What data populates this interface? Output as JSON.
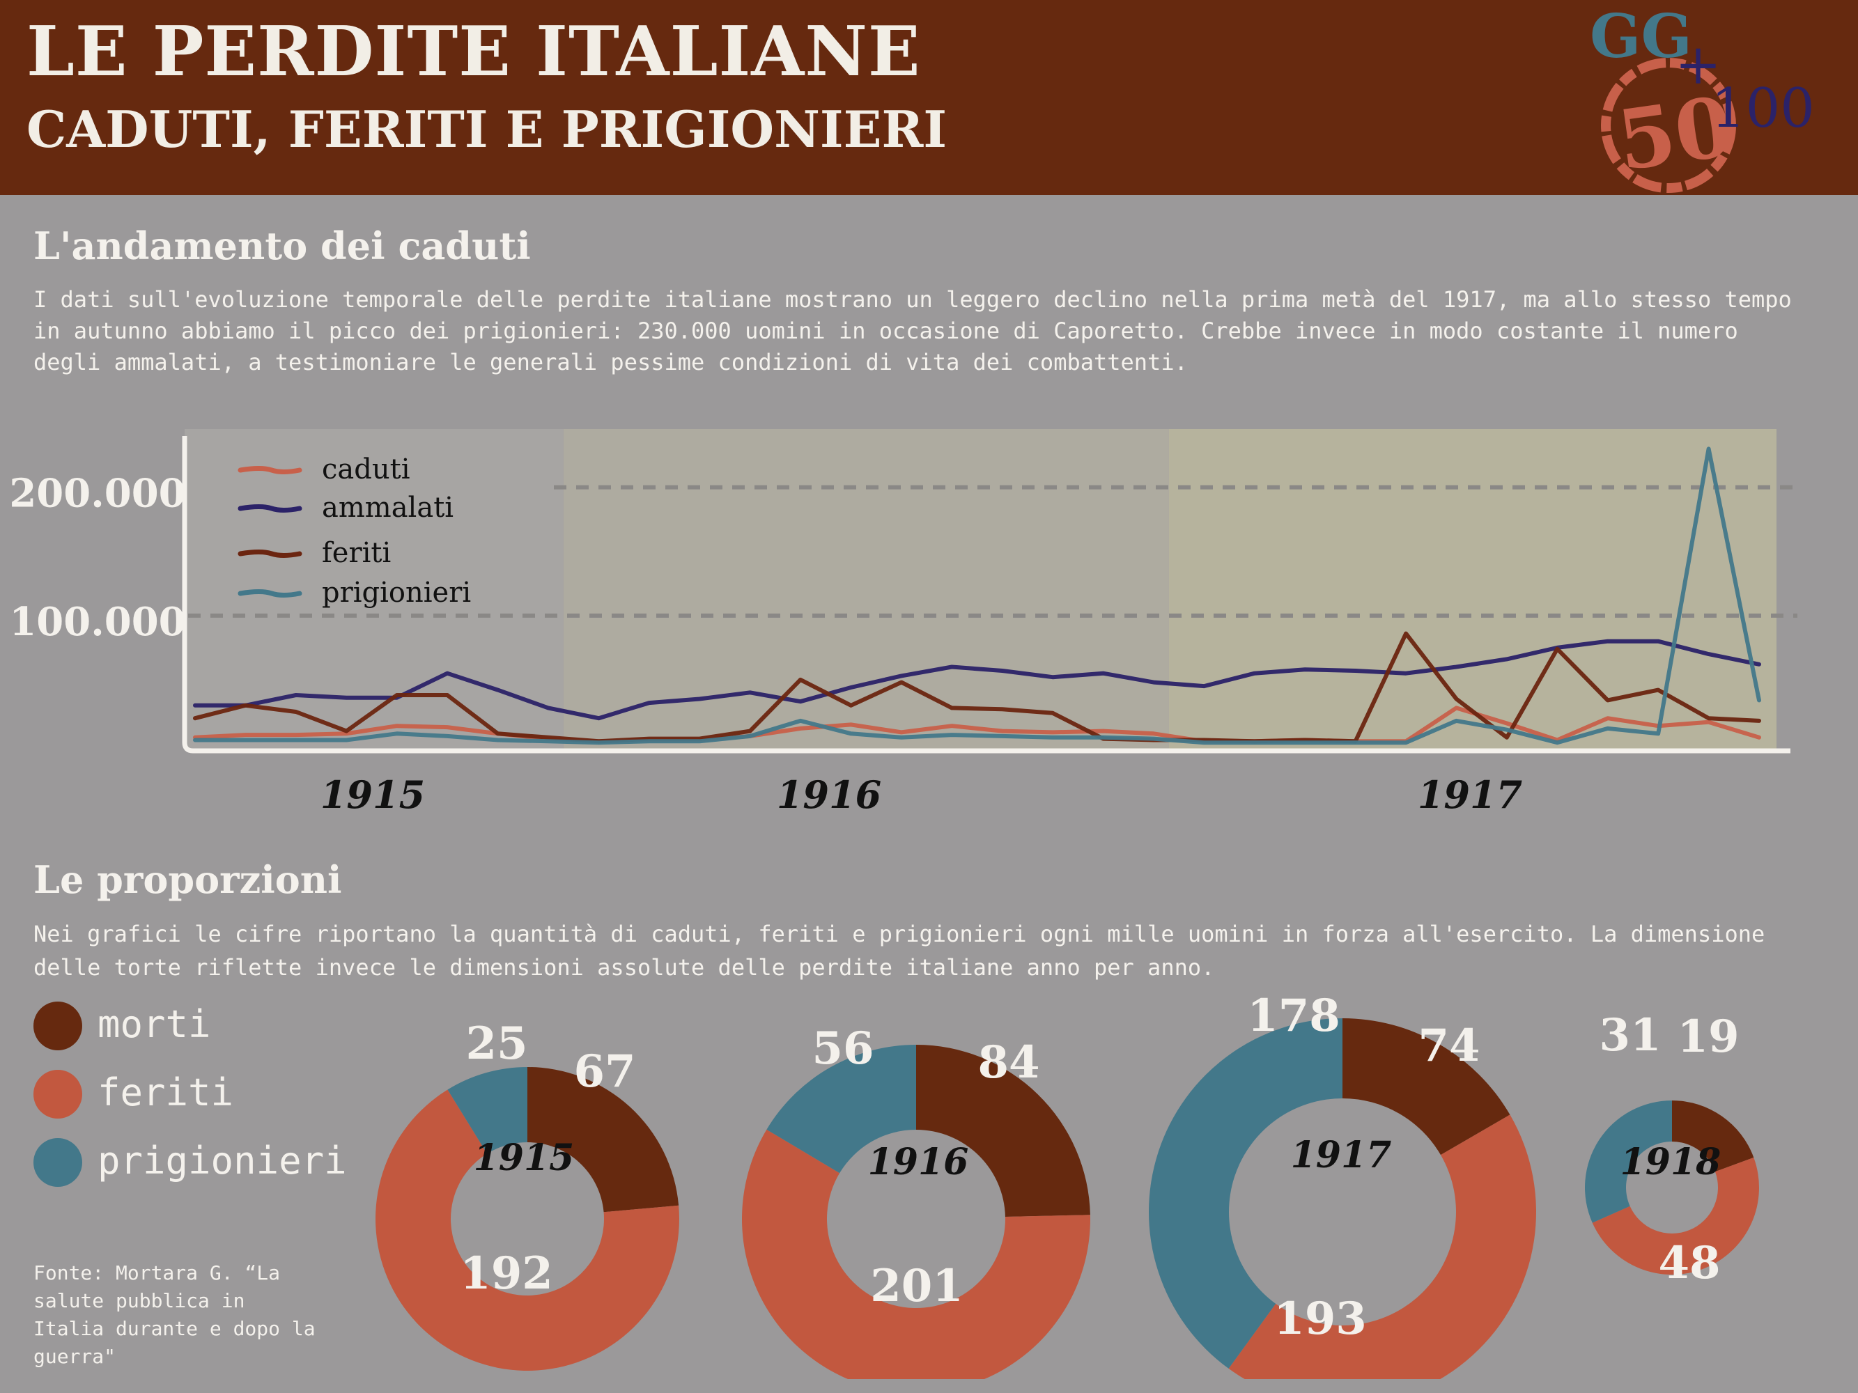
{
  "header": {
    "title": "Le perdite italiane",
    "subtitle": "caduti, feriti e prigionieri",
    "logo": {
      "top": "GG",
      "middle": "50",
      "plus": "+",
      "right": "100"
    }
  },
  "section1": {
    "title": "L'andamento dei caduti",
    "text": "I dati sull'evoluzione temporale delle perdite italiane mostrano un leggero declino nella prima metà del 1917, ma allo stesso tempo in autunno abbiamo il picco dei prigionieri: 230.000 uomini in occasione di Caporetto. Crebbe invece in modo costante il numero degli ammalati, a testimoniare le generali pessime condizioni di vita dei combattenti."
  },
  "section2": {
    "title": "Le proporzioni",
    "text": "Nei grafici le cifre riportano la quantità di caduti, feriti e prigionieri ogni mille uomini in forza all'esercito. La dimensione delle torte riflette invece le dimensioni assolute delle perdite italiane anno per anno.",
    "legend": [
      {
        "label": "morti",
        "color": "#66290f"
      },
      {
        "label": "feriti",
        "color": "#c2583f"
      },
      {
        "label": "prigionieri",
        "color": "#43788a"
      }
    ],
    "source": "Fonte: Mortara G. “La salute pubblica in Italia durante e dopo la guerra\""
  },
  "chart_data": [
    {
      "type": "line",
      "yticks": [
        {
          "value": 100000,
          "label": "100.000"
        },
        {
          "value": 200000,
          "label": "200.000"
        }
      ],
      "ylim": [
        0,
        240000
      ],
      "x": [
        0,
        1,
        2,
        3,
        4,
        5,
        6,
        7,
        8,
        9,
        10,
        11,
        12,
        13,
        14,
        15,
        16,
        17,
        18,
        19,
        20,
        21,
        22,
        23,
        24,
        25,
        26,
        27,
        28,
        29,
        30,
        31
      ],
      "year_bands": [
        {
          "label": "1915",
          "from": 0,
          "to": 7,
          "color": "#a7a5a3"
        },
        {
          "label": "1916",
          "from": 7,
          "to": 19,
          "color": "#aeaba0"
        },
        {
          "label": "1917",
          "from": 19,
          "to": 31,
          "color": "#b6b39d"
        }
      ],
      "series": [
        {
          "name": "caduti",
          "color": "#c8604a",
          "values": [
            5000,
            7000,
            7000,
            8000,
            14000,
            13000,
            8000,
            4000,
            2000,
            3000,
            3000,
            6000,
            12000,
            15000,
            9000,
            14000,
            10000,
            9000,
            10000,
            8000,
            2000,
            2000,
            3000,
            2000,
            2000,
            28000,
            16000,
            3000,
            20000,
            14000,
            17000,
            5000
          ]
        },
        {
          "name": "ammalati",
          "color": "#2b2268",
          "values": [
            30000,
            30000,
            38000,
            36000,
            36000,
            55000,
            42000,
            28000,
            20000,
            32000,
            35000,
            40000,
            33000,
            44000,
            53000,
            60000,
            57000,
            52000,
            55000,
            48000,
            45000,
            55000,
            58000,
            57000,
            55000,
            60000,
            66000,
            75000,
            80000,
            80000,
            70000,
            62000
          ]
        },
        {
          "name": "feriti",
          "color": "#6b2510",
          "values": [
            20000,
            30000,
            25000,
            10000,
            38000,
            38000,
            8000,
            5000,
            2000,
            4000,
            4000,
            10000,
            50000,
            30000,
            48000,
            28000,
            27000,
            24000,
            4000,
            3000,
            3000,
            2000,
            3000,
            2000,
            86000,
            35000,
            5000,
            74000,
            34000,
            42000,
            20000,
            18000
          ]
        },
        {
          "name": "prigionieri",
          "color": "#43788a",
          "values": [
            3000,
            3000,
            3000,
            3000,
            8000,
            6000,
            3000,
            2000,
            1000,
            2000,
            2000,
            6000,
            18000,
            8000,
            5000,
            7000,
            6000,
            5000,
            5000,
            4000,
            1000,
            1000,
            1000,
            1000,
            1000,
            18000,
            11000,
            1000,
            12000,
            8000,
            230000,
            34000
          ]
        }
      ]
    },
    {
      "type": "pie",
      "title": "1915",
      "categories": [
        "morti",
        "feriti",
        "prigionieri"
      ],
      "values": [
        67,
        192,
        25
      ]
    },
    {
      "type": "pie",
      "title": "1916",
      "categories": [
        "morti",
        "feriti",
        "prigionieri"
      ],
      "values": [
        84,
        201,
        56
      ]
    },
    {
      "type": "pie",
      "title": "1917",
      "categories": [
        "morti",
        "feriti",
        "prigionieri"
      ],
      "values": [
        74,
        193,
        178
      ]
    },
    {
      "type": "pie",
      "title": "1918",
      "categories": [
        "morti",
        "feriti",
        "prigionieri"
      ],
      "values": [
        19,
        48,
        31
      ]
    }
  ]
}
